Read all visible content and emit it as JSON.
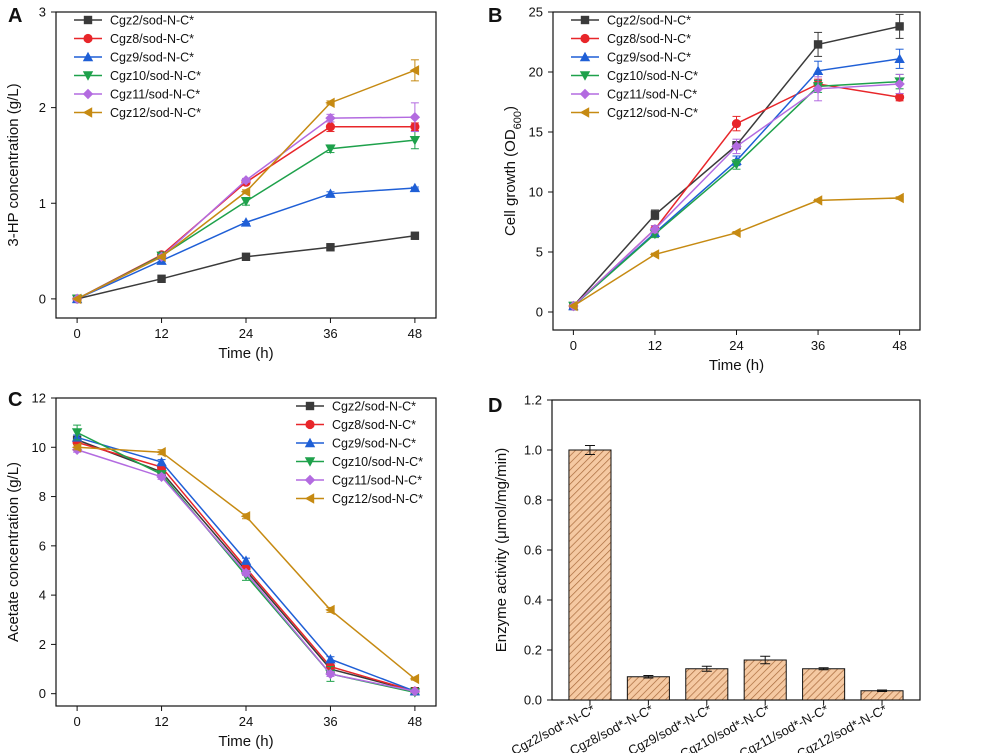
{
  "chart_data": [
    {
      "panel": "A",
      "type": "line",
      "xlabel": "Time (h)",
      "ylabel": "3-HP concentration (g/L)",
      "x": [
        0,
        12,
        24,
        36,
        48
      ],
      "xlim": [
        -3,
        51
      ],
      "ylim": [
        -0.2,
        3.0
      ],
      "xticks": [
        0,
        12,
        24,
        36,
        48
      ],
      "yticks": [
        0,
        1,
        2,
        3
      ],
      "legend": "top-left",
      "series": [
        {
          "name": "Cgz2/sod-N-C*",
          "color": "#3a3a3a",
          "marker": "square",
          "values": [
            0,
            0.21,
            0.44,
            0.54,
            0.66
          ],
          "errors": [
            0,
            0.01,
            0.01,
            0.01,
            0.01
          ]
        },
        {
          "name": "Cgz8/sod-N-C*",
          "color": "#e8262a",
          "marker": "circle",
          "values": [
            0,
            0.46,
            1.22,
            1.8,
            1.8
          ],
          "errors": [
            0,
            0.01,
            0.02,
            0.05,
            0.04
          ]
        },
        {
          "name": "Cgz9/sod-N-C*",
          "color": "#1f5fd6",
          "marker": "triangle-up",
          "values": [
            0,
            0.4,
            0.8,
            1.1,
            1.16
          ],
          "errors": [
            0,
            0.01,
            0.01,
            0.02,
            0.01
          ]
        },
        {
          "name": "Cgz10/sod-N-C*",
          "color": "#1ea14b",
          "marker": "triangle-down",
          "values": [
            0,
            0.45,
            1.02,
            1.57,
            1.66
          ],
          "errors": [
            0,
            0.01,
            0.04,
            0.04,
            0.09
          ]
        },
        {
          "name": "Cgz11/sod-N-C*",
          "color": "#b36be0",
          "marker": "diamond",
          "values": [
            0,
            0.44,
            1.24,
            1.89,
            1.9
          ],
          "errors": [
            0,
            0.01,
            0.02,
            0.04,
            0.15
          ]
        },
        {
          "name": "Cgz12/sod-N-C*",
          "color": "#c68a12",
          "marker": "triangle-left",
          "values": [
            0,
            0.44,
            1.12,
            2.05,
            2.39
          ],
          "errors": [
            0,
            0.01,
            0.02,
            0.02,
            0.11
          ]
        }
      ]
    },
    {
      "panel": "B",
      "type": "line",
      "xlabel": "Time (h)",
      "ylabel": "Cell growth (OD",
      "ylabel_sub": "600",
      "ylabel_close": ")",
      "x": [
        0,
        12,
        24,
        36,
        48
      ],
      "xlim": [
        -3,
        51
      ],
      "ylim": [
        -1.5,
        25
      ],
      "xticks": [
        0,
        12,
        24,
        36,
        48
      ],
      "yticks": [
        0,
        5,
        10,
        15,
        20,
        25
      ],
      "legend": "top-left",
      "series": [
        {
          "name": "Cgz2/sod-N-C*",
          "color": "#3a3a3a",
          "marker": "square",
          "values": [
            0.5,
            8.1,
            13.9,
            22.3,
            23.8
          ],
          "errors": [
            0,
            0.4,
            0.3,
            1.0,
            1.0
          ]
        },
        {
          "name": "Cgz8/sod-N-C*",
          "color": "#e8262a",
          "marker": "circle",
          "values": [
            0.5,
            6.9,
            15.7,
            19.0,
            17.9
          ],
          "errors": [
            0,
            0.3,
            0.6,
            0.4,
            0.3
          ]
        },
        {
          "name": "Cgz9/sod-N-C*",
          "color": "#1f5fd6",
          "marker": "triangle-up",
          "values": [
            0.5,
            6.6,
            12.6,
            20.1,
            21.1
          ],
          "errors": [
            0,
            0.3,
            0.4,
            0.8,
            0.8
          ]
        },
        {
          "name": "Cgz10/sod-N-C*",
          "color": "#1ea14b",
          "marker": "triangle-down",
          "values": [
            0.5,
            6.5,
            12.3,
            18.8,
            19.2
          ],
          "errors": [
            0,
            0.3,
            0.4,
            0.5,
            0.6
          ]
        },
        {
          "name": "Cgz11/sod-N-C*",
          "color": "#b36be0",
          "marker": "diamond",
          "values": [
            0.5,
            6.9,
            13.8,
            18.6,
            19.0
          ],
          "errors": [
            0,
            0.3,
            0.6,
            1.0,
            0.8
          ]
        },
        {
          "name": "Cgz12/sod-N-C*",
          "color": "#c68a12",
          "marker": "triangle-left",
          "values": [
            0.5,
            4.8,
            6.6,
            9.3,
            9.5
          ],
          "errors": [
            0,
            0.1,
            0.1,
            0.1,
            0.1
          ]
        }
      ]
    },
    {
      "panel": "C",
      "type": "line",
      "xlabel": "Time (h)",
      "ylabel": "Acetate concentration (g/L)",
      "x": [
        0,
        12,
        24,
        36,
        48
      ],
      "xlim": [
        -3,
        51
      ],
      "ylim": [
        -0.5,
        12
      ],
      "xticks": [
        0,
        12,
        24,
        36,
        48
      ],
      "yticks": [
        0,
        2,
        4,
        6,
        8,
        10,
        12
      ],
      "legend": "top-right",
      "series": [
        {
          "name": "Cgz2/sod-N-C*",
          "color": "#3a3a3a",
          "marker": "square",
          "values": [
            10.3,
            9.0,
            5.0,
            1.0,
            0.1
          ],
          "errors": [
            0.1,
            0.1,
            0.1,
            0.1,
            0.05
          ]
        },
        {
          "name": "Cgz8/sod-N-C*",
          "color": "#e8262a",
          "marker": "circle",
          "values": [
            10.2,
            9.2,
            5.1,
            1.1,
            0.1
          ],
          "errors": [
            0.1,
            0.1,
            0.1,
            0.1,
            0.05
          ]
        },
        {
          "name": "Cgz9/sod-N-C*",
          "color": "#1f5fd6",
          "marker": "triangle-up",
          "values": [
            10.4,
            9.4,
            5.4,
            1.4,
            0.1
          ],
          "errors": [
            0.1,
            0.1,
            0.1,
            0.1,
            0.05
          ]
        },
        {
          "name": "Cgz10/sod-N-C*",
          "color": "#1ea14b",
          "marker": "triangle-down",
          "values": [
            10.6,
            8.9,
            4.8,
            0.8,
            0.05
          ],
          "errors": [
            0.3,
            0.1,
            0.2,
            0.3,
            0.05
          ]
        },
        {
          "name": "Cgz11/sod-N-C*",
          "color": "#b36be0",
          "marker": "diamond",
          "values": [
            9.9,
            8.8,
            4.9,
            0.8,
            0.1
          ],
          "errors": [
            0.1,
            0.1,
            0.1,
            0.1,
            0.05
          ]
        },
        {
          "name": "Cgz12/sod-N-C*",
          "color": "#c68a12",
          "marker": "triangle-left",
          "values": [
            10.0,
            9.8,
            7.2,
            3.4,
            0.6
          ],
          "errors": [
            0.1,
            0.1,
            0.1,
            0.1,
            0.05
          ]
        }
      ]
    },
    {
      "panel": "D",
      "type": "bar",
      "ylabel": "Enzyme activity (μmol/mg/min)",
      "ylim": [
        0,
        1.2
      ],
      "yticks": [
        0.0,
        0.2,
        0.4,
        0.6,
        0.8,
        1.0,
        1.2
      ],
      "categories": [
        "Cgz2/sod*-N-C*",
        "Cgz8/sod*-N-C*",
        "Cgz9/sod*-N-C*",
        "Cgz10/sod*-N-C*",
        "Cgz11/sod*-N-C*",
        "Cgz12/sod*-N-C*"
      ],
      "values": [
        1.0,
        0.093,
        0.125,
        0.16,
        0.125,
        0.037
      ],
      "errors": [
        0.018,
        0.005,
        0.01,
        0.015,
        0.004,
        0.003
      ],
      "bar_color": "#f5c9a2",
      "hatch_color": "#a86a3c"
    }
  ]
}
